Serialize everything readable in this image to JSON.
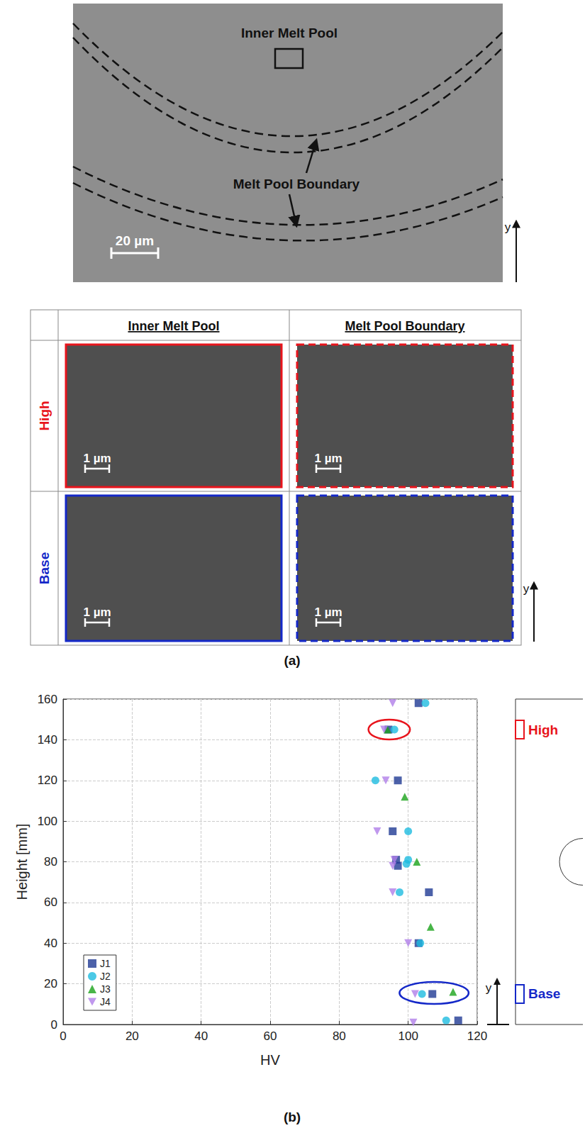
{
  "panel_a": {
    "label": "(a)",
    "micrograph": {
      "region_label": "Inner Melt Pool",
      "boundary_label": "Melt Pool Boundary",
      "scale_bar": "20 µm",
      "axis": "y"
    },
    "table": {
      "columns": [
        "Inner Melt Pool",
        "Melt Pool Boundary"
      ],
      "rows": [
        {
          "label": "High",
          "color": "#e8141c"
        },
        {
          "label": "Base",
          "color": "#1428c8"
        }
      ],
      "scale_bar": "1 µm",
      "axis": "y"
    }
  },
  "panel_b": {
    "label": "(b)",
    "schematic_axis": "y"
  },
  "chart_data": {
    "type": "scatter",
    "x_label": "HV",
    "y_label": "Height [mm]",
    "xlim": [
      0,
      120
    ],
    "xticks": [
      0,
      20,
      40,
      60,
      80,
      100,
      120
    ],
    "ylim": [
      0,
      160
    ],
    "yticks": [
      0,
      20,
      40,
      60,
      80,
      100,
      120,
      140,
      160
    ],
    "grid": true,
    "legend": "lower left",
    "series": [
      {
        "name": "J1",
        "color": "#1f3a93",
        "marker": "square",
        "x": [
          103,
          94.3,
          97,
          95.5,
          96.5,
          97,
          106,
          103,
          107,
          114.5
        ],
        "values": [
          158,
          145,
          120,
          95,
          81,
          78,
          65,
          40,
          15,
          2
        ]
      },
      {
        "name": "J2",
        "color": "#1ebbe0",
        "marker": "circle",
        "x": [
          105,
          96,
          90.5,
          100,
          100,
          99.5,
          97.5,
          103.5,
          104,
          111
        ],
        "values": [
          158,
          145,
          120,
          95,
          81,
          79,
          65,
          40,
          15,
          2
        ]
      },
      {
        "name": "J3",
        "color": "#1aa31a",
        "marker": "triangle",
        "x": [
          94,
          99,
          102.5,
          106.5,
          113
        ],
        "values": [
          145,
          112,
          80,
          48,
          16
        ]
      },
      {
        "name": "J4",
        "color": "#b07ee8",
        "marker": "triangle-down",
        "x": [
          95.5,
          93,
          93.5,
          91,
          96,
          95.5,
          95.5,
          100,
          102,
          101.5
        ],
        "values": [
          158,
          145,
          120,
          95,
          81,
          78,
          65,
          40,
          15,
          1
        ]
      }
    ],
    "annotations": [
      {
        "label": "High",
        "color": "#e8141c",
        "y": 145
      },
      {
        "label": "Base",
        "color": "#1428c8",
        "y": 15
      }
    ]
  }
}
